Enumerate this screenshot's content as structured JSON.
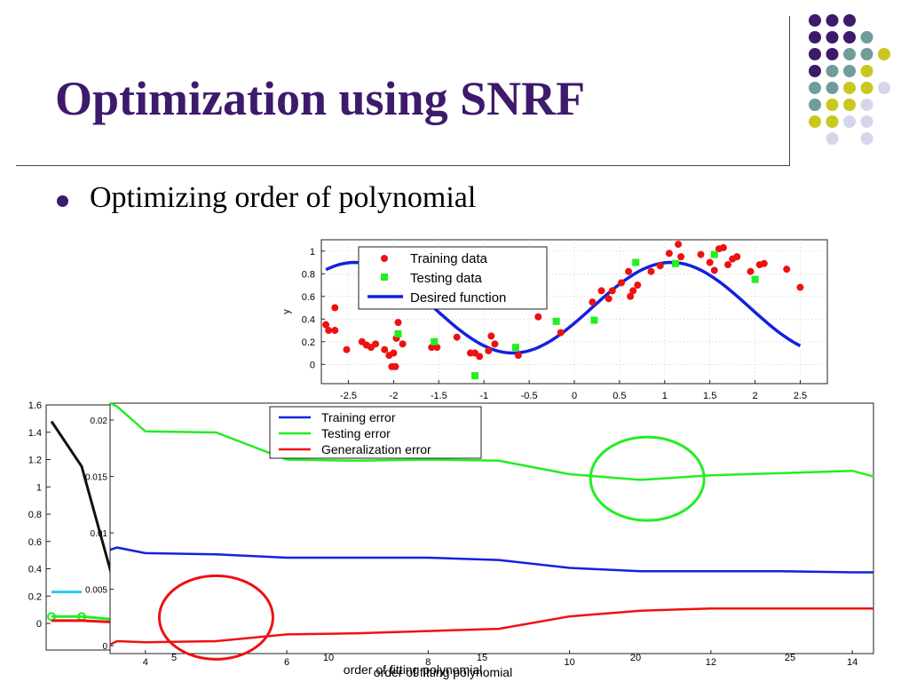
{
  "slide": {
    "title": "Optimization using SNRF",
    "bullet": "Optimizing order of polynomial"
  },
  "colors": {
    "title": "#3d1a6b",
    "dot_purple": "#3d1a6b",
    "dot_teal": "#6f9d9c",
    "dot_yellow": "#c9c81e",
    "dot_lavender": "#d6d6ea"
  },
  "decor_dots": [
    {
      "row": 0,
      "col": 0,
      "color": "purple"
    },
    {
      "row": 0,
      "col": 1,
      "color": "purple"
    },
    {
      "row": 0,
      "col": 2,
      "color": "purple"
    },
    {
      "row": 1,
      "col": 0,
      "color": "purple"
    },
    {
      "row": 1,
      "col": 1,
      "color": "purple"
    },
    {
      "row": 1,
      "col": 2,
      "color": "purple"
    },
    {
      "row": 1,
      "col": 3,
      "color": "teal"
    },
    {
      "row": 2,
      "col": 0,
      "color": "purple"
    },
    {
      "row": 2,
      "col": 1,
      "color": "purple"
    },
    {
      "row": 2,
      "col": 2,
      "color": "teal"
    },
    {
      "row": 2,
      "col": 3,
      "color": "teal"
    },
    {
      "row": 2,
      "col": 4,
      "color": "yellow"
    },
    {
      "row": 3,
      "col": 0,
      "color": "purple"
    },
    {
      "row": 3,
      "col": 1,
      "color": "teal"
    },
    {
      "row": 3,
      "col": 2,
      "color": "teal"
    },
    {
      "row": 3,
      "col": 3,
      "color": "yellow"
    },
    {
      "row": 4,
      "col": 0,
      "color": "teal"
    },
    {
      "row": 4,
      "col": 1,
      "color": "teal"
    },
    {
      "row": 4,
      "col": 2,
      "color": "yellow"
    },
    {
      "row": 4,
      "col": 3,
      "color": "yellow"
    },
    {
      "row": 4,
      "col": 4,
      "color": "lavender"
    },
    {
      "row": 5,
      "col": 0,
      "color": "teal"
    },
    {
      "row": 5,
      "col": 1,
      "color": "yellow"
    },
    {
      "row": 5,
      "col": 2,
      "color": "yellow"
    },
    {
      "row": 5,
      "col": 3,
      "color": "lavender"
    },
    {
      "row": 6,
      "col": 0,
      "color": "yellow"
    },
    {
      "row": 6,
      "col": 1,
      "color": "yellow"
    },
    {
      "row": 6,
      "col": 2,
      "color": "lavender"
    },
    {
      "row": 6,
      "col": 3,
      "color": "lavender"
    },
    {
      "row": 7,
      "col": 1,
      "color": "lavender"
    },
    {
      "row": 7,
      "col": 3,
      "color": "lavender"
    }
  ],
  "chart_data": [
    {
      "type": "scatter",
      "ylabel": "y",
      "xlim": [
        -2.8,
        2.8
      ],
      "ylim": [
        -0.17,
        1.1
      ],
      "xticks": [
        "-2.5",
        "-2",
        "-1.5",
        "-1",
        "-0.5",
        "0",
        "0.5",
        "1",
        "1.5",
        "2",
        "2.5"
      ],
      "xtick_values": [
        -2.5,
        -2,
        -1.5,
        -1,
        -0.5,
        0,
        0.5,
        1,
        1.5,
        2,
        2.5
      ],
      "yticks": [
        "0",
        "0.2",
        "0.4",
        "0.6",
        "0.8",
        "1"
      ],
      "ytick_values": [
        0,
        0.2,
        0.4,
        0.6,
        0.8,
        1
      ],
      "grid": true,
      "legend_position": "top-left",
      "series": [
        {
          "name": "Training data",
          "marker": "circle",
          "color": "#ee1111",
          "points": [
            [
              -2.75,
              0.35
            ],
            [
              -2.72,
              0.3
            ],
            [
              -2.65,
              0.5
            ],
            [
              -2.65,
              0.3
            ],
            [
              -2.52,
              0.13
            ],
            [
              -2.35,
              0.2
            ],
            [
              -2.3,
              0.17
            ],
            [
              -2.25,
              0.15
            ],
            [
              -2.2,
              0.18
            ],
            [
              -2.1,
              0.13
            ],
            [
              -2.05,
              0.08
            ],
            [
              -2.02,
              -0.02
            ],
            [
              -2.0,
              0.1
            ],
            [
              -1.98,
              -0.02
            ],
            [
              -1.97,
              0.23
            ],
            [
              -1.95,
              0.37
            ],
            [
              -1.9,
              0.18
            ],
            [
              -1.58,
              0.15
            ],
            [
              -1.55,
              0.18
            ],
            [
              -1.52,
              0.15
            ],
            [
              -1.3,
              0.24
            ],
            [
              -1.15,
              0.1
            ],
            [
              -1.1,
              0.1
            ],
            [
              -1.05,
              0.07
            ],
            [
              -0.95,
              0.12
            ],
            [
              -0.92,
              0.25
            ],
            [
              -0.88,
              0.18
            ],
            [
              -0.62,
              0.08
            ],
            [
              -0.42,
              0.53
            ],
            [
              -0.4,
              0.42
            ],
            [
              -0.15,
              0.28
            ],
            [
              0.2,
              0.55
            ],
            [
              0.3,
              0.65
            ],
            [
              0.38,
              0.58
            ],
            [
              0.42,
              0.65
            ],
            [
              0.52,
              0.72
            ],
            [
              0.6,
              0.82
            ],
            [
              0.62,
              0.6
            ],
            [
              0.65,
              0.65
            ],
            [
              0.7,
              0.7
            ],
            [
              0.85,
              0.82
            ],
            [
              0.95,
              0.87
            ],
            [
              1.05,
              0.98
            ],
            [
              1.15,
              1.06
            ],
            [
              1.18,
              0.95
            ],
            [
              1.4,
              0.97
            ],
            [
              1.5,
              0.9
            ],
            [
              1.55,
              0.83
            ],
            [
              1.6,
              1.02
            ],
            [
              1.65,
              1.03
            ],
            [
              1.7,
              0.88
            ],
            [
              1.75,
              0.93
            ],
            [
              1.8,
              0.95
            ],
            [
              1.95,
              0.82
            ],
            [
              2.05,
              0.88
            ],
            [
              2.1,
              0.89
            ],
            [
              2.35,
              0.84
            ],
            [
              2.5,
              0.68
            ]
          ]
        },
        {
          "name": "Testing data",
          "marker": "square",
          "color": "#22ee22",
          "points": [
            [
              -1.95,
              0.27
            ],
            [
              -1.55,
              0.2
            ],
            [
              -1.1,
              -0.1
            ],
            [
              -0.65,
              0.15
            ],
            [
              -0.2,
              0.38
            ],
            [
              0.22,
              0.39
            ],
            [
              0.68,
              0.9
            ],
            [
              1.12,
              0.89
            ],
            [
              1.55,
              0.97
            ],
            [
              2.0,
              0.75
            ]
          ]
        },
        {
          "name": "Desired function",
          "type": "line",
          "color": "#1122dd",
          "formula": "0.5+0.4*sin(2*pi*x/3.5 - 0.35)"
        }
      ]
    },
    {
      "type": "line",
      "xlabel": "order of fitting polynomial",
      "ylim": [
        0,
        1.6
      ],
      "yticks": [
        "0",
        "0.2",
        "0.4",
        "0.6",
        "0.8",
        "1",
        "1.2",
        "1.4",
        "1.6"
      ],
      "ytick_values": [
        0,
        0.2,
        0.4,
        0.6,
        0.8,
        1,
        1.2,
        1.4,
        1.6
      ],
      "xticks": [
        "5",
        "10",
        "15",
        "20",
        "25"
      ],
      "series": [
        {
          "name": "",
          "color": "#111111",
          "x": [
            0,
            1,
            2
          ],
          "values": [
            1.48,
            1.15,
            0.35
          ]
        },
        {
          "name": "",
          "color": "#22ccee",
          "x": [
            0,
            1
          ],
          "values": [
            0.23,
            0.23
          ]
        },
        {
          "name": "",
          "color": "#22ee22",
          "x": [
            0,
            1,
            2
          ],
          "values": [
            0.05,
            0.05,
            0.03
          ]
        },
        {
          "name": "",
          "color": "#ee1111",
          "x": [
            0,
            1,
            2
          ],
          "values": [
            0.02,
            0.02,
            0.01
          ]
        }
      ]
    },
    {
      "type": "line",
      "xlabel": "order of fitting polynomial",
      "xlim": [
        3.5,
        14.3
      ],
      "ylim": [
        -0.0007,
        0.0215
      ],
      "xticks": [
        "4",
        "6",
        "8",
        "10",
        "12",
        "14"
      ],
      "xtick_values": [
        4,
        6,
        8,
        10,
        12,
        14
      ],
      "yticks": [
        "0",
        "0.005",
        "0.01",
        "0.015",
        "0.02"
      ],
      "ytick_values": [
        0,
        0.005,
        0.01,
        0.015,
        0.02
      ],
      "legend_position": "top-center",
      "series": [
        {
          "name": "Training error",
          "color": "#1122dd",
          "x": [
            3.5,
            3.6,
            4,
            5,
            6,
            7,
            8,
            9,
            10,
            11,
            12,
            13,
            14,
            14.3
          ],
          "values": [
            0.0085,
            0.0087,
            0.0082,
            0.0081,
            0.0078,
            0.0078,
            0.0078,
            0.0076,
            0.0069,
            0.0066,
            0.0066,
            0.0066,
            0.0065,
            0.0065
          ]
        },
        {
          "name": "Testing error",
          "color": "#22ee22",
          "x": [
            3.5,
            3.6,
            4,
            5,
            6,
            7,
            8,
            9,
            10,
            11,
            12,
            13,
            14,
            14.3
          ],
          "values": [
            0.0215,
            0.0212,
            0.019,
            0.0189,
            0.0165,
            0.0164,
            0.0165,
            0.0164,
            0.0152,
            0.0147,
            0.0151,
            0.0153,
            0.0155,
            0.015
          ]
        },
        {
          "name": "Generalization error",
          "color": "#ee1111",
          "x": [
            3.5,
            3.6,
            4,
            5,
            6,
            7,
            8,
            9,
            10,
            11,
            12,
            13,
            14,
            14.3
          ],
          "values": [
            0.0001,
            0.0004,
            0.0003,
            0.0004,
            0.001,
            0.0011,
            0.0013,
            0.0015,
            0.0026,
            0.0031,
            0.0033,
            0.0033,
            0.0033,
            0.0033
          ]
        }
      ],
      "annotations": [
        {
          "shape": "ellipse",
          "color": "#22ee22",
          "x": 11.1,
          "y": 0.0148
        },
        {
          "shape": "ellipse",
          "color": "#ee1111",
          "x": 5.0,
          "y": 0.0025
        }
      ]
    }
  ]
}
